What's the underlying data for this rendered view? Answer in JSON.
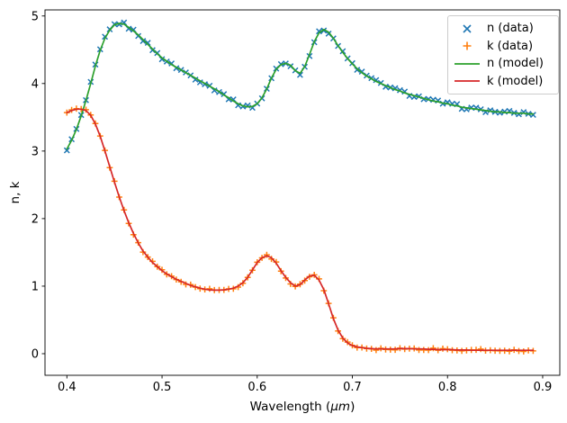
{
  "figure": {
    "ylabel": "n, k",
    "xlabel_parts": {
      "pre": "Wavelength (",
      "math": "μm",
      "post": ")"
    }
  },
  "chart_data": {
    "type": "line",
    "title": "",
    "xlabel": "Wavelength (μm)",
    "ylabel": "n, k",
    "grid": false,
    "legend_position": "upper right",
    "xlim": [
      0.377,
      0.918
    ],
    "ylim": [
      -0.32,
      5.09
    ],
    "xticks": [
      0.4,
      0.5,
      0.6,
      0.7,
      0.8,
      0.9
    ],
    "xtick_labels": [
      "0.4",
      "0.5",
      "0.6",
      "0.7",
      "0.8",
      "0.9"
    ],
    "yticks": [
      0,
      1,
      2,
      3,
      4,
      5
    ],
    "ytick_labels": [
      "0",
      "1",
      "2",
      "3",
      "4",
      "5"
    ],
    "x": [
      0.4,
      0.405,
      0.41,
      0.415,
      0.42,
      0.425,
      0.43,
      0.435,
      0.44,
      0.445,
      0.45,
      0.455,
      0.46,
      0.465,
      0.47,
      0.475,
      0.48,
      0.485,
      0.49,
      0.495,
      0.5,
      0.505,
      0.51,
      0.515,
      0.52,
      0.525,
      0.53,
      0.535,
      0.54,
      0.545,
      0.55,
      0.555,
      0.56,
      0.565,
      0.57,
      0.575,
      0.58,
      0.585,
      0.59,
      0.595,
      0.6,
      0.605,
      0.61,
      0.615,
      0.62,
      0.625,
      0.63,
      0.635,
      0.64,
      0.645,
      0.65,
      0.655,
      0.66,
      0.665,
      0.67,
      0.675,
      0.68,
      0.685,
      0.69,
      0.695,
      0.7,
      0.705,
      0.71,
      0.715,
      0.72,
      0.725,
      0.73,
      0.735,
      0.74,
      0.745,
      0.75,
      0.755,
      0.76,
      0.765,
      0.77,
      0.775,
      0.78,
      0.785,
      0.79,
      0.795,
      0.8,
      0.805,
      0.81,
      0.815,
      0.82,
      0.825,
      0.83,
      0.835,
      0.84,
      0.845,
      0.85,
      0.855,
      0.86,
      0.865,
      0.87,
      0.875,
      0.88,
      0.885,
      0.89
    ],
    "n": [
      3.03,
      3.16,
      3.32,
      3.52,
      3.75,
      4.0,
      4.26,
      4.49,
      4.67,
      4.79,
      4.87,
      4.89,
      4.88,
      4.83,
      4.78,
      4.72,
      4.65,
      4.58,
      4.51,
      4.44,
      4.38,
      4.33,
      4.28,
      4.24,
      4.2,
      4.16,
      4.12,
      4.08,
      4.04,
      4.0,
      3.96,
      3.92,
      3.88,
      3.83,
      3.79,
      3.74,
      3.7,
      3.67,
      3.655,
      3.66,
      3.7,
      3.79,
      3.92,
      4.08,
      4.21,
      4.28,
      4.3,
      4.27,
      4.19,
      4.15,
      4.25,
      4.43,
      4.62,
      4.75,
      4.8,
      4.76,
      4.67,
      4.56,
      4.46,
      4.37,
      4.29,
      4.22,
      4.16,
      4.11,
      4.07,
      4.03,
      4.0,
      3.97,
      3.94,
      3.91,
      3.89,
      3.86,
      3.84,
      3.82,
      3.8,
      3.78,
      3.76,
      3.74,
      3.73,
      3.71,
      3.7,
      3.68,
      3.67,
      3.65,
      3.64,
      3.63,
      3.62,
      3.61,
      3.6,
      3.59,
      3.58,
      3.58,
      3.57,
      3.57,
      3.56,
      3.56,
      3.56,
      3.55,
      3.55
    ],
    "k": [
      3.57,
      3.6,
      3.62,
      3.62,
      3.6,
      3.53,
      3.4,
      3.22,
      3.0,
      2.77,
      2.54,
      2.32,
      2.12,
      1.94,
      1.78,
      1.64,
      1.52,
      1.43,
      1.35,
      1.29,
      1.23,
      1.18,
      1.14,
      1.1,
      1.07,
      1.04,
      1.01,
      0.99,
      0.97,
      0.955,
      0.945,
      0.94,
      0.94,
      0.945,
      0.955,
      0.97,
      1.0,
      1.05,
      1.13,
      1.24,
      1.35,
      1.42,
      1.45,
      1.42,
      1.34,
      1.23,
      1.13,
      1.05,
      1.0,
      1.02,
      1.09,
      1.15,
      1.16,
      1.09,
      0.95,
      0.74,
      0.52,
      0.35,
      0.23,
      0.16,
      0.12,
      0.1,
      0.09,
      0.08,
      0.075,
      0.07,
      0.07,
      0.07,
      0.07,
      0.07,
      0.075,
      0.075,
      0.075,
      0.07,
      0.07,
      0.07,
      0.065,
      0.065,
      0.06,
      0.06,
      0.06,
      0.06,
      0.055,
      0.055,
      0.055,
      0.05,
      0.05,
      0.05,
      0.05,
      0.05,
      0.05,
      0.05,
      0.05,
      0.05,
      0.05,
      0.05,
      0.05,
      0.05,
      0.05
    ],
    "series": [
      {
        "name": "n (data)",
        "type": "scatter",
        "marker": "x",
        "color": "#1f77b4",
        "values_ref": "n",
        "jitter": 0.025
      },
      {
        "name": "k (data)",
        "type": "scatter",
        "marker": "+",
        "color": "#ff7f0e",
        "values_ref": "k",
        "jitter": 0.018
      },
      {
        "name": "n (model)",
        "type": "line",
        "color": "#2ca02c",
        "values_ref": "n"
      },
      {
        "name": "k (model)",
        "type": "line",
        "color": "#d62728",
        "values_ref": "k"
      }
    ]
  }
}
